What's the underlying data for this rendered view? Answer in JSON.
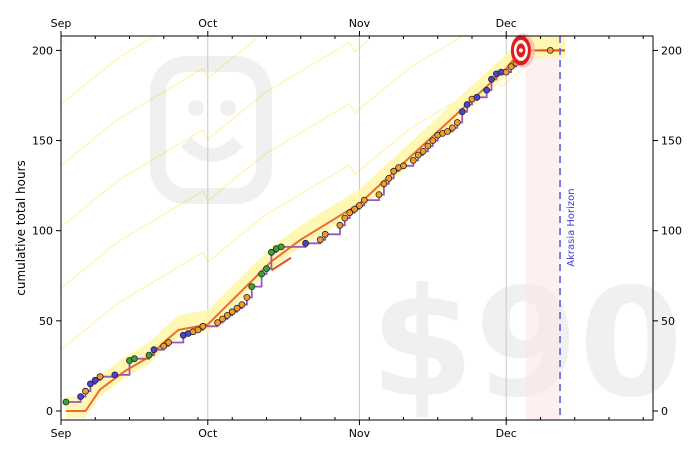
{
  "chart_data": {
    "type": "line",
    "title": "",
    "ylabel": "cumulative total hours",
    "xlabel": "",
    "x_domain": [
      "2023-09-01",
      "2023-12-31"
    ],
    "ylim": [
      -5,
      208
    ],
    "x_ticks": [
      {
        "date": "2023-09-01",
        "label": "Sep"
      },
      {
        "date": "2023-10-01",
        "label": "Oct"
      },
      {
        "date": "2023-11-01",
        "label": "Nov"
      },
      {
        "date": "2023-12-01",
        "label": "Dec"
      }
    ],
    "y_ticks": [
      0,
      50,
      100,
      150,
      200
    ],
    "pledge": "$90",
    "akrasia_horizon": {
      "label": "Akrasia Horizon",
      "date": "2023-12-12"
    },
    "today": "2023-12-05",
    "goal": {
      "date": "2023-12-04",
      "value": 200
    },
    "colors": {
      "points_orange": "#f39c2a",
      "points_blue": "#4b43d6",
      "points_green": "#3aa33a",
      "step_line": "#9b59b6",
      "road": "#e8541a",
      "road_band": "#fff7a8",
      "guide_lines": "#fff39a",
      "horizon": "#5555dd",
      "horizon_zone": "#ffe6e6"
    },
    "datapoints": [
      {
        "x": "2023-09-02",
        "y": 5,
        "c": "green"
      },
      {
        "x": "2023-09-05",
        "y": 8,
        "c": "blue"
      },
      {
        "x": "2023-09-06",
        "y": 11,
        "c": "orange"
      },
      {
        "x": "2023-09-07",
        "y": 15,
        "c": "blue"
      },
      {
        "x": "2023-09-08",
        "y": 17,
        "c": "blue"
      },
      {
        "x": "2023-09-09",
        "y": 19,
        "c": "orange"
      },
      {
        "x": "2023-09-12",
        "y": 20,
        "c": "blue"
      },
      {
        "x": "2023-09-15",
        "y": 28,
        "c": "green"
      },
      {
        "x": "2023-09-16",
        "y": 29,
        "c": "green"
      },
      {
        "x": "2023-09-19",
        "y": 31,
        "c": "green"
      },
      {
        "x": "2023-09-20",
        "y": 34,
        "c": "blue"
      },
      {
        "x": "2023-09-22",
        "y": 36,
        "c": "orange"
      },
      {
        "x": "2023-09-23",
        "y": 38,
        "c": "orange"
      },
      {
        "x": "2023-09-26",
        "y": 42,
        "c": "blue"
      },
      {
        "x": "2023-09-27",
        "y": 43,
        "c": "blue"
      },
      {
        "x": "2023-09-28",
        "y": 44,
        "c": "orange"
      },
      {
        "x": "2023-09-29",
        "y": 45,
        "c": "orange"
      },
      {
        "x": "2023-09-30",
        "y": 47,
        "c": "orange"
      },
      {
        "x": "2023-10-03",
        "y": 49,
        "c": "orange"
      },
      {
        "x": "2023-10-04",
        "y": 51,
        "c": "orange"
      },
      {
        "x": "2023-10-05",
        "y": 53,
        "c": "orange"
      },
      {
        "x": "2023-10-06",
        "y": 55,
        "c": "orange"
      },
      {
        "x": "2023-10-07",
        "y": 57,
        "c": "orange"
      },
      {
        "x": "2023-10-08",
        "y": 59,
        "c": "orange"
      },
      {
        "x": "2023-10-09",
        "y": 63,
        "c": "orange"
      },
      {
        "x": "2023-10-10",
        "y": 69,
        "c": "green"
      },
      {
        "x": "2023-10-12",
        "y": 76,
        "c": "green"
      },
      {
        "x": "2023-10-13",
        "y": 79,
        "c": "green"
      },
      {
        "x": "2023-10-14",
        "y": 88,
        "c": "green"
      },
      {
        "x": "2023-10-15",
        "y": 90,
        "c": "green"
      },
      {
        "x": "2023-10-16",
        "y": 91,
        "c": "green"
      },
      {
        "x": "2023-10-21",
        "y": 93,
        "c": "blue"
      },
      {
        "x": "2023-10-24",
        "y": 95,
        "c": "orange"
      },
      {
        "x": "2023-10-25",
        "y": 98,
        "c": "orange"
      },
      {
        "x": "2023-10-28",
        "y": 103,
        "c": "orange"
      },
      {
        "x": "2023-10-29",
        "y": 107,
        "c": "orange"
      },
      {
        "x": "2023-10-30",
        "y": 110,
        "c": "orange"
      },
      {
        "x": "2023-10-31",
        "y": 112,
        "c": "orange"
      },
      {
        "x": "2023-11-01",
        "y": 114,
        "c": "orange"
      },
      {
        "x": "2023-11-02",
        "y": 117,
        "c": "orange"
      },
      {
        "x": "2023-11-05",
        "y": 120,
        "c": "orange"
      },
      {
        "x": "2023-11-06",
        "y": 126,
        "c": "orange"
      },
      {
        "x": "2023-11-07",
        "y": 129,
        "c": "orange"
      },
      {
        "x": "2023-11-08",
        "y": 133,
        "c": "orange"
      },
      {
        "x": "2023-11-09",
        "y": 135,
        "c": "orange"
      },
      {
        "x": "2023-11-10",
        "y": 136,
        "c": "orange"
      },
      {
        "x": "2023-11-12",
        "y": 139,
        "c": "orange"
      },
      {
        "x": "2023-11-13",
        "y": 142,
        "c": "orange"
      },
      {
        "x": "2023-11-14",
        "y": 144,
        "c": "orange"
      },
      {
        "x": "2023-11-15",
        "y": 147,
        "c": "orange"
      },
      {
        "x": "2023-11-16",
        "y": 150,
        "c": "orange"
      },
      {
        "x": "2023-11-17",
        "y": 153,
        "c": "orange"
      },
      {
        "x": "2023-11-18",
        "y": 154,
        "c": "orange"
      },
      {
        "x": "2023-11-19",
        "y": 155,
        "c": "orange"
      },
      {
        "x": "2023-11-20",
        "y": 157,
        "c": "orange"
      },
      {
        "x": "2023-11-21",
        "y": 160,
        "c": "orange"
      },
      {
        "x": "2023-11-22",
        "y": 166,
        "c": "blue"
      },
      {
        "x": "2023-11-23",
        "y": 170,
        "c": "blue"
      },
      {
        "x": "2023-11-24",
        "y": 173,
        "c": "orange"
      },
      {
        "x": "2023-11-25",
        "y": 174,
        "c": "blue"
      },
      {
        "x": "2023-11-27",
        "y": 178,
        "c": "blue"
      },
      {
        "x": "2023-11-28",
        "y": 184,
        "c": "blue"
      },
      {
        "x": "2023-11-29",
        "y": 187,
        "c": "blue"
      },
      {
        "x": "2023-11-30",
        "y": 188,
        "c": "blue"
      },
      {
        "x": "2023-12-01",
        "y": 188,
        "c": "orange"
      },
      {
        "x": "2023-12-02",
        "y": 191,
        "c": "orange"
      },
      {
        "x": "2023-12-03",
        "y": 193,
        "c": "orange"
      },
      {
        "x": "2023-12-03",
        "y": 196,
        "c": "orange"
      },
      {
        "x": "2023-12-04",
        "y": 200,
        "c": "orange"
      },
      {
        "x": "2023-12-05",
        "y": 200,
        "c": "orange"
      },
      {
        "x": "2023-12-10",
        "y": 200,
        "c": "orange"
      }
    ],
    "road": [
      {
        "x": "2023-09-02",
        "y": 0
      },
      {
        "x": "2023-09-06",
        "y": 0
      },
      {
        "x": "2023-09-09",
        "y": 12
      },
      {
        "x": "2023-09-14",
        "y": 22
      },
      {
        "x": "2023-09-19",
        "y": 30
      },
      {
        "x": "2023-09-22",
        "y": 38
      },
      {
        "x": "2023-09-25",
        "y": 45
      },
      {
        "x": "2023-10-01",
        "y": 48
      },
      {
        "x": "2023-10-14",
        "y": 83
      },
      {
        "x": "2023-10-20",
        "y": 95
      },
      {
        "x": "2023-11-01",
        "y": 115
      },
      {
        "x": "2023-12-01",
        "y": 190
      },
      {
        "x": "2023-12-04",
        "y": 200
      },
      {
        "x": "2023-12-13",
        "y": 200
      }
    ],
    "road_segments": [
      {
        "from": {
          "x": "2023-10-14",
          "y": 78
        },
        "to": {
          "x": "2023-10-18",
          "y": 85
        }
      },
      {
        "from": {
          "x": "2023-12-08",
          "y": 200
        },
        "to": {
          "x": "2023-12-13",
          "y": 200
        }
      }
    ]
  }
}
